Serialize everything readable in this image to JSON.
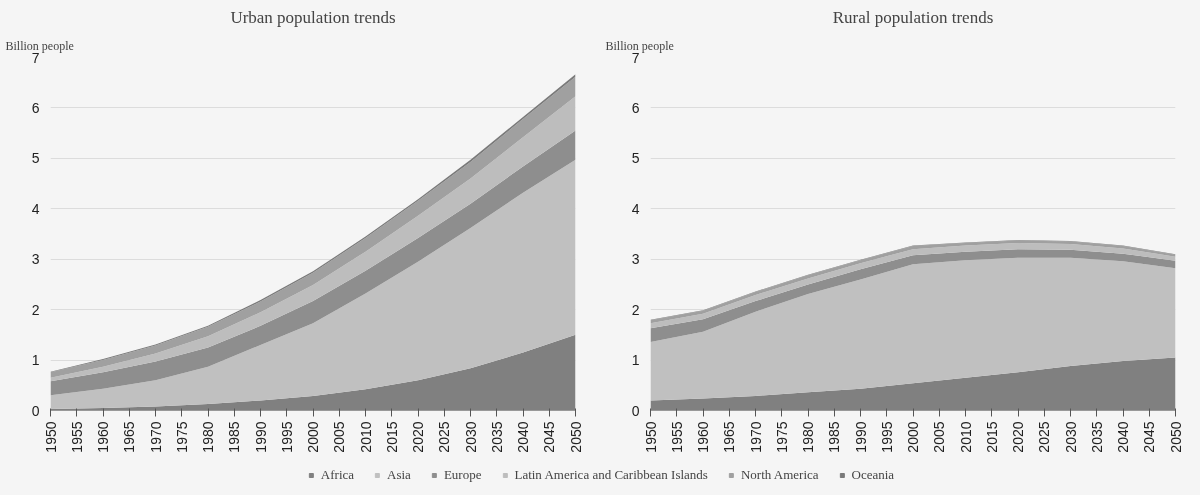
{
  "chart_data": [
    {
      "type": "area",
      "title": "Urban population trends",
      "ylabel": "Billion people",
      "stacked": true,
      "legend": "bottom",
      "grid": "y",
      "x": [
        1950,
        1960,
        1970,
        1980,
        1990,
        2000,
        2010,
        2020,
        2030,
        2040,
        2050
      ],
      "xlim": [
        1950,
        2050
      ],
      "xticks": [
        1950,
        1955,
        1960,
        1965,
        1970,
        1975,
        1980,
        1985,
        1990,
        1995,
        2000,
        2005,
        2010,
        2015,
        2020,
        2025,
        2030,
        2035,
        2040,
        2045,
        2050
      ],
      "ylim": [
        0,
        7
      ],
      "yticks": [
        0,
        1,
        2,
        3,
        4,
        5,
        6,
        7
      ],
      "series": [
        {
          "name": "Africa",
          "color": "#808080",
          "values": [
            0.03,
            0.05,
            0.08,
            0.13,
            0.2,
            0.29,
            0.42,
            0.6,
            0.84,
            1.15,
            1.5
          ]
        },
        {
          "name": "Asia",
          "color": "#c0c0c0",
          "values": [
            0.27,
            0.38,
            0.52,
            0.74,
            1.1,
            1.44,
            1.9,
            2.35,
            2.78,
            3.17,
            3.47
          ]
        },
        {
          "name": "Europe",
          "color": "#8e8e8e",
          "values": [
            0.28,
            0.33,
            0.37,
            0.38,
            0.38,
            0.44,
            0.45,
            0.47,
            0.48,
            0.52,
            0.58
          ]
        },
        {
          "name": "Latin America and Caribbean Islands",
          "color": "#bdbdbd",
          "values": [
            0.07,
            0.11,
            0.16,
            0.22,
            0.27,
            0.32,
            0.38,
            0.44,
            0.5,
            0.58,
            0.68
          ]
        },
        {
          "name": "North America",
          "color": "#a0a0a0",
          "values": [
            0.11,
            0.13,
            0.16,
            0.19,
            0.21,
            0.24,
            0.27,
            0.3,
            0.33,
            0.36,
            0.39
          ]
        },
        {
          "name": "Oceania",
          "color": "#7a7a7a",
          "values": [
            0.01,
            0.02,
            0.02,
            0.02,
            0.03,
            0.03,
            0.03,
            0.03,
            0.04,
            0.04,
            0.05
          ]
        }
      ]
    },
    {
      "type": "area",
      "title": "Rural population trends",
      "ylabel": "Billion people",
      "stacked": true,
      "legend": "bottom",
      "grid": "y",
      "x": [
        1950,
        1960,
        1970,
        1980,
        1990,
        2000,
        2010,
        2020,
        2030,
        2040,
        2050
      ],
      "xlim": [
        1950,
        2050
      ],
      "xticks": [
        1950,
        1955,
        1960,
        1965,
        1970,
        1975,
        1980,
        1985,
        1990,
        1995,
        2000,
        2005,
        2010,
        2015,
        2020,
        2025,
        2030,
        2035,
        2040,
        2045,
        2050
      ],
      "ylim": [
        0,
        7
      ],
      "yticks": [
        0,
        1,
        2,
        3,
        4,
        5,
        6,
        7
      ],
      "series": [
        {
          "name": "Africa",
          "color": "#808080",
          "values": [
            0.2,
            0.24,
            0.29,
            0.36,
            0.43,
            0.54,
            0.65,
            0.76,
            0.88,
            0.98,
            1.05
          ]
        },
        {
          "name": "Asia",
          "color": "#c0c0c0",
          "values": [
            1.16,
            1.32,
            1.67,
            1.95,
            2.17,
            2.36,
            2.33,
            2.27,
            2.15,
            1.98,
            1.77
          ]
        },
        {
          "name": "Europe",
          "color": "#8e8e8e",
          "values": [
            0.27,
            0.25,
            0.21,
            0.19,
            0.2,
            0.18,
            0.17,
            0.17,
            0.16,
            0.15,
            0.15
          ]
        },
        {
          "name": "Latin America and Caribbean Islands",
          "color": "#bdbdbd",
          "values": [
            0.1,
            0.11,
            0.12,
            0.12,
            0.12,
            0.12,
            0.12,
            0.12,
            0.11,
            0.1,
            0.08
          ]
        },
        {
          "name": "North America",
          "color": "#a0a0a0",
          "values": [
            0.06,
            0.06,
            0.06,
            0.06,
            0.06,
            0.06,
            0.05,
            0.05,
            0.05,
            0.05,
            0.04
          ]
        },
        {
          "name": "Oceania",
          "color": "#7a7a7a",
          "values": [
            0.01,
            0.01,
            0.01,
            0.01,
            0.01,
            0.01,
            0.01,
            0.01,
            0.01,
            0.01,
            0.01
          ]
        }
      ]
    }
  ]
}
